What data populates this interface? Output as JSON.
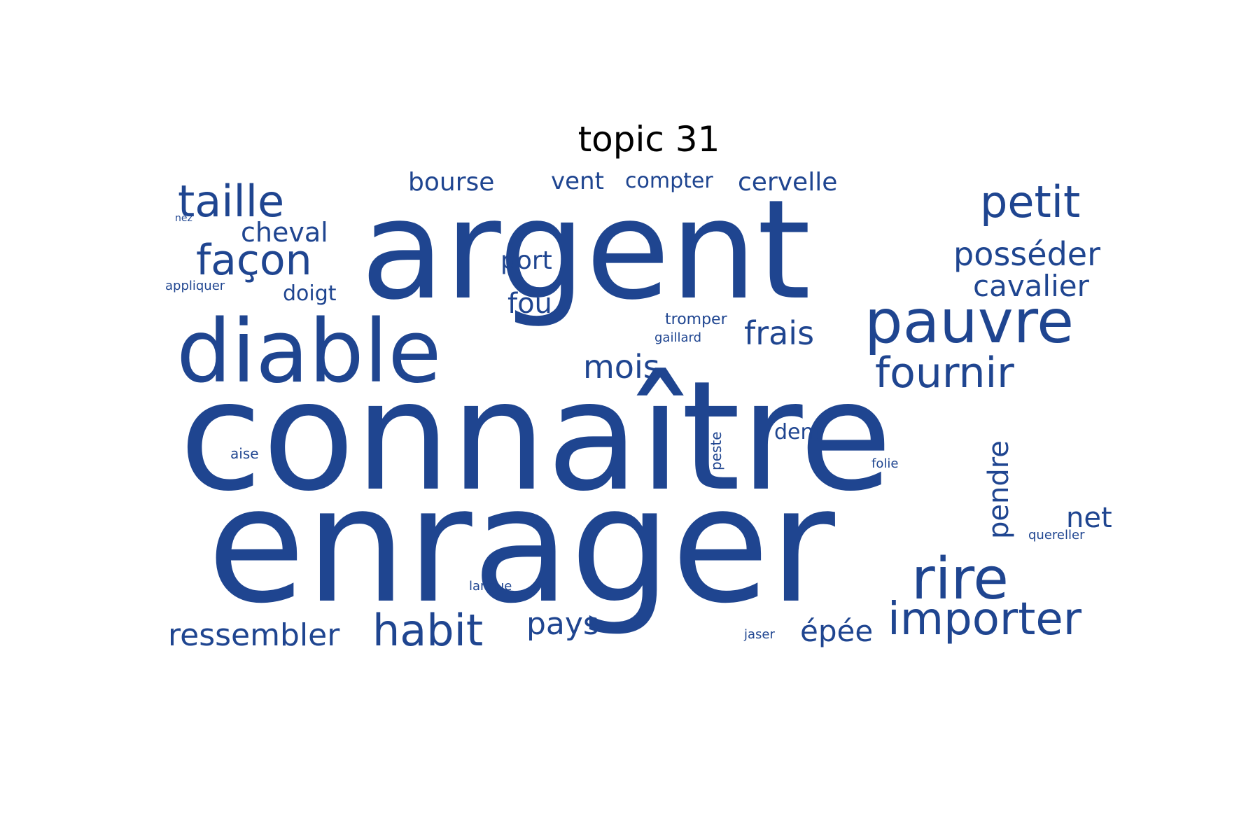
{
  "title": "topic 31",
  "word_color": "#1f4590",
  "words": [
    "connaître",
    "enrager",
    "argent",
    "diable",
    "pauvre",
    "rire",
    "importer",
    "habit",
    "fournir",
    "petit",
    "taille",
    "façon",
    "posséder",
    "cavalier",
    "ressembler",
    "frais",
    "mois",
    "pays",
    "pendre",
    "épée",
    "bourse",
    "cheval",
    "cervelle",
    "fou",
    "port",
    "net",
    "vent",
    "compter",
    "dent",
    "doigt",
    "tromper",
    "gaillard",
    "appliquer",
    "peste",
    "aise",
    "folie",
    "quereller",
    "langue",
    "jaser",
    "nez"
  ]
}
